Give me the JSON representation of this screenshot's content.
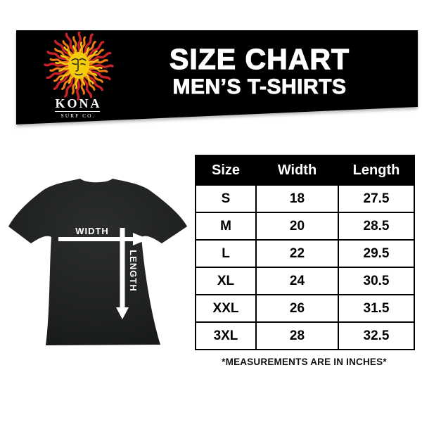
{
  "page": {
    "background": "#ffffff"
  },
  "banner": {
    "title": "SIZE CHART",
    "subtitle": "MEN’S T-SHIRTS",
    "bg_color": "#000000",
    "text_color": "#ffffff"
  },
  "brand": {
    "name": "KONA",
    "subname": "SURF CO.",
    "logo": "sun-logo",
    "logo_colors": {
      "red": "#c8232a",
      "orange": "#ee7d13",
      "yellow": "#f3cd0c",
      "face": "#f3cd0c"
    }
  },
  "diagram": {
    "item": "black t-shirt",
    "width_label": "WIDTH",
    "length_label": "LENGTH",
    "shirt_color": "#1d201f",
    "arrow_color": "#ffffff"
  },
  "chart_data": {
    "type": "table",
    "title": "SIZE CHART — MEN’S T-SHIRTS",
    "columns": [
      "Size",
      "Width",
      "Length"
    ],
    "rows": [
      [
        "S",
        "18",
        "27.5"
      ],
      [
        "M",
        "20",
        "28.5"
      ],
      [
        "L",
        "22",
        "29.5"
      ],
      [
        "XL",
        "24",
        "30.5"
      ],
      [
        "XXL",
        "26",
        "31.5"
      ],
      [
        "3XL",
        "28",
        "32.5"
      ]
    ],
    "units": "inches"
  },
  "note": "*MEASUREMENTS ARE IN INCHES*"
}
